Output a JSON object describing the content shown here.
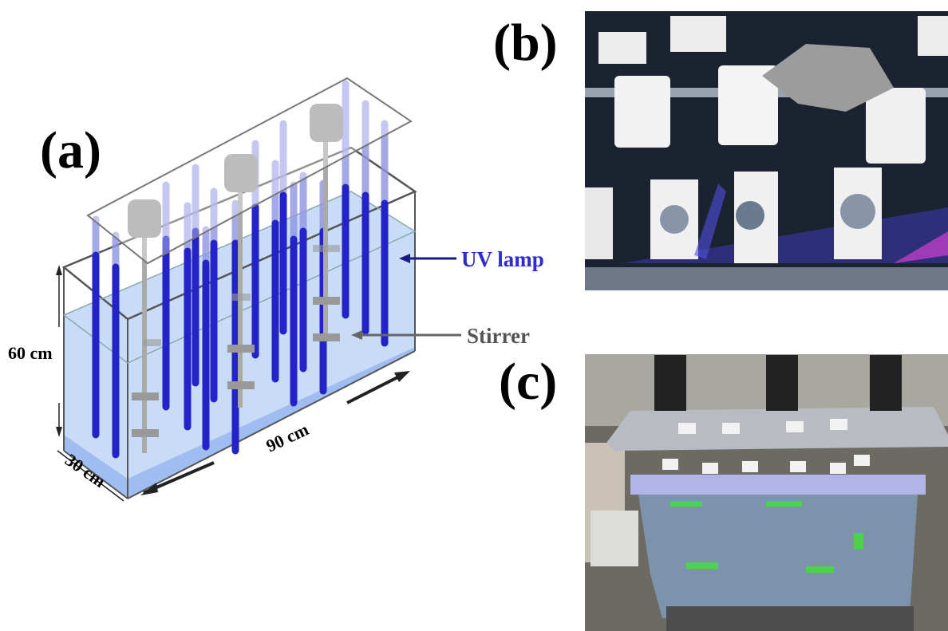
{
  "panels": [
    {
      "label": "(a)"
    },
    {
      "label": "(b)"
    },
    {
      "label": "(c)"
    }
  ],
  "annotations": {
    "uv_lamp": "UV lamp",
    "stirrer": "Stirrer",
    "height": "60 cm",
    "length": "90 cm",
    "width": "30 cm"
  }
}
